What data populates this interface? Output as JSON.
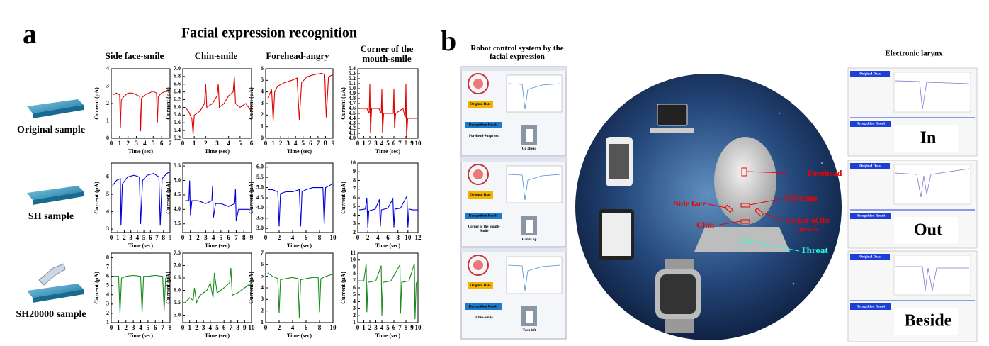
{
  "panel_a": {
    "label": "a",
    "title": "Facial expression recognition",
    "ylabel": "Current (μA)",
    "xlabel": "Time (sec)",
    "columns": [
      "Side face-smile",
      "Chin-smile",
      "Forehead-angry",
      "Corner of the mouth-smile"
    ],
    "rows": [
      {
        "sample": "Original sample",
        "color": "#e00000",
        "charts": [
          {
            "type": "line",
            "xlim": [
              0,
              7
            ],
            "ylim": [
              0,
              4
            ],
            "xticks": [
              0,
              1,
              2,
              3,
              4,
              5,
              6,
              7
            ],
            "yticks": [
              0,
              1,
              2,
              3,
              4
            ],
            "x": [
              0.2,
              0.6,
              1.0,
              1.1,
              1.2,
              1.5,
              2.0,
              2.5,
              3.0,
              3.4,
              3.5,
              3.6,
              4.0,
              4.5,
              5.0,
              5.4,
              5.5,
              5.6,
              6.0,
              6.5,
              6.8
            ],
            "values": [
              2.5,
              2.6,
              2.5,
              0.6,
              2.2,
              2.4,
              2.6,
              2.6,
              2.5,
              2.4,
              0.4,
              2.3,
              2.5,
              2.6,
              2.7,
              2.6,
              0.9,
              2.4,
              2.6,
              2.7,
              2.8
            ]
          },
          {
            "type": "line",
            "xlim": [
              0,
              6
            ],
            "ylim": [
              5.2,
              7.0
            ],
            "xticks": [
              0,
              1,
              2,
              3,
              4,
              5,
              6
            ],
            "yticks": [
              5.2,
              5.4,
              5.6,
              5.8,
              {
                "value": 6,
                "label": "6.0"
              },
              6.2,
              6.4,
              6.6,
              6.8,
              {
                "value": 7,
                "label": "7.0"
              }
            ],
            "x": [
              0.2,
              0.5,
              0.8,
              0.9,
              1.0,
              1.5,
              1.9,
              2.0,
              2.1,
              2.6,
              3.0,
              3.1,
              3.2,
              3.6,
              4.0,
              4.4,
              4.5,
              4.6,
              5.0,
              5.5,
              6.0
            ],
            "values": [
              6.0,
              5.9,
              5.7,
              5.3,
              5.8,
              5.9,
              6.1,
              6.6,
              6.0,
              6.1,
              6.3,
              6.6,
              6.0,
              6.1,
              6.3,
              6.4,
              6.8,
              6.1,
              6.0,
              6.1,
              5.9
            ]
          },
          {
            "type": "line",
            "xlim": [
              0,
              9
            ],
            "ylim": [
              0,
              6
            ],
            "xticks": [
              0,
              1,
              2,
              3,
              4,
              5,
              6,
              7,
              8,
              9
            ],
            "yticks": [
              0,
              1,
              2,
              3,
              4,
              5,
              6
            ],
            "x": [
              0.3,
              0.8,
              1.0,
              1.2,
              1.6,
              2.5,
              3.5,
              4.2,
              4.5,
              4.8,
              5.5,
              6.5,
              7.5,
              7.9,
              8.1,
              8.4,
              9.0
            ],
            "values": [
              3.5,
              4.2,
              1.5,
              4.0,
              4.5,
              4.8,
              5.0,
              5.2,
              1.6,
              4.8,
              5.3,
              5.5,
              5.6,
              5.5,
              1.8,
              5.3,
              5.5
            ]
          },
          {
            "type": "line",
            "xlim": [
              0,
              10
            ],
            "ylim": [
              4.0,
              5.4
            ],
            "xticks": [
              0,
              1,
              2,
              3,
              4,
              5,
              6,
              7,
              8,
              9,
              10
            ],
            "yticks": [
              {
                "value": 4,
                "label": "4.0"
              },
              4.1,
              4.2,
              4.3,
              4.4,
              4.5,
              4.6,
              4.7,
              4.8,
              4.9,
              {
                "value": 5,
                "label": "5.0"
              },
              5.1,
              5.2,
              5.3,
              5.4
            ],
            "x": [
              0.3,
              1.5,
              1.9,
              2.0,
              2.1,
              2.3,
              3.5,
              3.9,
              4.0,
              4.1,
              4.3,
              5.5,
              5.9,
              6.0,
              6.1,
              6.3,
              7.5,
              7.9,
              8.0,
              8.1,
              8.3,
              9.0,
              9.8
            ],
            "values": [
              4.6,
              4.6,
              4.5,
              5.1,
              4.1,
              4.6,
              4.6,
              4.5,
              5.0,
              4.1,
              4.5,
              4.5,
              4.5,
              5.0,
              4.2,
              4.5,
              4.6,
              4.4,
              5.1,
              4.0,
              4.4,
              4.4,
              4.4
            ]
          }
        ]
      },
      {
        "sample": "SH sample",
        "color": "#0000dd",
        "charts": [
          {
            "type": "line",
            "xlim": [
              0,
              9
            ],
            "ylim": [
              2.8,
              6.8
            ],
            "xticks": [
              0,
              1,
              2,
              3,
              4,
              5,
              6,
              7,
              8,
              9
            ],
            "yticks": [
              3,
              4,
              5,
              6
            ],
            "x": [
              0.2,
              0.8,
              1.4,
              1.5,
              1.7,
              2.5,
              3.5,
              4.3,
              4.5,
              4.8,
              5.5,
              6.5,
              7.3,
              7.5,
              7.8,
              8.5,
              9.0
            ],
            "values": [
              5.5,
              5.8,
              5.9,
              3.2,
              5.6,
              6.0,
              6.1,
              6.0,
              3.3,
              5.8,
              6.1,
              6.2,
              6.0,
              3.2,
              5.9,
              6.2,
              6.3
            ]
          },
          {
            "type": "line",
            "xlim": [
              0,
              9
            ],
            "ylim": [
              3.2,
              5.6
            ],
            "xticks": [
              0,
              1,
              2,
              3,
              4,
              5,
              6,
              7,
              8,
              9
            ],
            "yticks": [
              3.5,
              {
                "value": 4,
                "label": "4.0"
              },
              4.5,
              {
                "value": 5,
                "label": "5.0"
              },
              5.5
            ],
            "x": [
              0.3,
              0.8,
              0.9,
              1.0,
              1.2,
              2.0,
              3.0,
              3.8,
              3.9,
              4.0,
              4.3,
              5.0,
              6.0,
              6.8,
              6.9,
              7.0,
              7.3,
              8.0,
              8.8
            ],
            "values": [
              4.3,
              4.3,
              5.0,
              3.8,
              4.3,
              4.3,
              4.2,
              4.3,
              4.8,
              3.7,
              4.2,
              4.2,
              4.1,
              4.2,
              4.7,
              3.6,
              4.0,
              4.0,
              4.0
            ]
          },
          {
            "type": "line",
            "xlim": [
              0,
              10
            ],
            "ylim": [
              2.8,
              6.2
            ],
            "xticks": [
              0,
              2,
              4,
              6,
              8,
              10
            ],
            "yticks": [
              {
                "value": 3,
                "label": "3.0"
              },
              3.5,
              {
                "value": 4,
                "label": "4.0"
              },
              4.5,
              {
                "value": 5,
                "label": "5.0"
              },
              5.5,
              {
                "value": 6,
                "label": "6.0"
              }
            ],
            "x": [
              0.3,
              1.0,
              1.8,
              2.0,
              2.2,
              3.0,
              4.0,
              5.0,
              5.2,
              5.4,
              6.0,
              7.0,
              8.5,
              8.7,
              8.9,
              9.5,
              10.0
            ],
            "values": [
              4.9,
              4.9,
              4.8,
              3.1,
              4.7,
              4.8,
              4.8,
              4.9,
              3.1,
              4.8,
              4.9,
              5.0,
              5.0,
              3.2,
              5.0,
              5.1,
              5.2
            ]
          },
          {
            "type": "line",
            "xlim": [
              0,
              12
            ],
            "ylim": [
              2,
              10
            ],
            "xticks": [
              0,
              2,
              4,
              6,
              8,
              10,
              12
            ],
            "yticks": [
              2,
              3,
              4,
              5,
              6,
              7,
              8,
              9,
              10
            ],
            "x": [
              0.3,
              1.5,
              1.8,
              2.0,
              2.2,
              3.5,
              4.3,
              4.5,
              4.7,
              6.0,
              7.0,
              7.2,
              7.4,
              8.5,
              9.8,
              10.0,
              10.2,
              11.0,
              12.0
            ],
            "values": [
              4.6,
              4.7,
              6.0,
              2.5,
              4.5,
              4.7,
              5.8,
              2.7,
              4.6,
              4.8,
              5.9,
              2.6,
              4.7,
              4.8,
              6.2,
              2.6,
              4.7,
              4.6,
              4.6
            ]
          }
        ]
      },
      {
        "sample": "SH20000 sample",
        "color": "#1a8a1a",
        "charts": [
          {
            "type": "line",
            "xlim": [
              0,
              8
            ],
            "ylim": [
              1,
              8.5
            ],
            "xticks": [
              0,
              1,
              2,
              3,
              4,
              5,
              6,
              7,
              8
            ],
            "yticks": [
              1,
              2,
              3,
              4,
              5,
              6,
              7,
              8
            ],
            "x": [
              0.2,
              1.0,
              1.2,
              1.4,
              2.0,
              3.0,
              4.0,
              4.2,
              4.4,
              5.0,
              6.0,
              7.0,
              7.2,
              7.4,
              8.0
            ],
            "values": [
              6.0,
              6.0,
              2.0,
              5.8,
              6.0,
              6.1,
              6.0,
              2.1,
              6.0,
              6.0,
              6.1,
              6.0,
              2.3,
              5.8,
              5.9
            ]
          },
          {
            "type": "line",
            "xlim": [
              0,
              10
            ],
            "ylim": [
              4.7,
              7.5
            ],
            "xticks": [
              0,
              1,
              2,
              3,
              4,
              5,
              6,
              7,
              8,
              9,
              10
            ],
            "yticks": [
              {
                "value": 5,
                "label": "5.0"
              },
              5.5,
              {
                "value": 6,
                "label": "6.0"
              },
              6.5,
              {
                "value": 7,
                "label": "7.0"
              },
              7.5
            ],
            "x": [
              0.3,
              1.0,
              1.5,
              1.7,
              2.0,
              2.5,
              3.0,
              3.5,
              4.0,
              4.4,
              4.6,
              5.0,
              5.5,
              6.0,
              6.8,
              7.0,
              7.2,
              8.0,
              9.0,
              10.0
            ],
            "values": [
              5.5,
              5.7,
              5.6,
              6.1,
              5.5,
              5.8,
              5.9,
              6.0,
              6.3,
              5.7,
              6.7,
              5.9,
              6.0,
              6.1,
              6.3,
              6.9,
              5.8,
              5.9,
              6.1,
              6.3
            ]
          },
          {
            "type": "line",
            "xlim": [
              0,
              10
            ],
            "ylim": [
              1,
              7
            ],
            "xticks": [
              0,
              2,
              4,
              6,
              8,
              10
            ],
            "yticks": [
              1,
              2,
              3,
              4,
              5,
              6,
              7
            ],
            "x": [
              0.3,
              1.0,
              1.8,
              2.0,
              2.2,
              3.0,
              4.0,
              4.8,
              5.0,
              5.2,
              6.0,
              7.0,
              7.8,
              8.0,
              8.2,
              9.0,
              10.0
            ],
            "values": [
              5.3,
              5.0,
              4.8,
              1.8,
              4.7,
              4.8,
              4.9,
              4.8,
              1.4,
              4.7,
              4.8,
              4.9,
              4.9,
              1.9,
              4.8,
              5.0,
              5.2
            ]
          },
          {
            "type": "line",
            "xlim": [
              0,
              10
            ],
            "ylim": [
              1,
              11
            ],
            "xticks": [
              0,
              1,
              2,
              3,
              4,
              5,
              6,
              7,
              8,
              9,
              10
            ],
            "yticks": [
              1,
              2,
              3,
              4,
              5,
              6,
              7,
              8,
              9,
              10,
              11
            ],
            "x": [
              0.3,
              1.0,
              1.4,
              1.5,
              1.7,
              3.0,
              3.9,
              4.0,
              4.2,
              5.5,
              7.0,
              7.1,
              7.3,
              8.5,
              9.4,
              9.5,
              9.7,
              10.0
            ],
            "values": [
              7.0,
              7.0,
              9.5,
              2.5,
              6.8,
              7.0,
              9.2,
              2.0,
              6.8,
              7.0,
              9.3,
              2.3,
              6.8,
              7.0,
              9.5,
              1.5,
              6.7,
              6.9
            ]
          }
        ]
      }
    ]
  },
  "panel_b": {
    "label": "b",
    "robot_title": "Robot control system by the facial expression",
    "original": "Original Date",
    "recognition": "Recognition Result",
    "screens": [
      {
        "result": "Forehead-Surprised",
        "action": "Go ahead"
      },
      {
        "result": "Corner of the mouth-Smile",
        "action": "Hands up"
      },
      {
        "result": "Chin-Smile",
        "action": "Turn left"
      }
    ],
    "face_labels": {
      "forehead": "Forehead",
      "philtrum": "Philtrum",
      "side_face": "Side face",
      "corner": "Corner of the mouth",
      "chin": "Chin",
      "throat": "Throat"
    },
    "larynx": {
      "title": "Electronic larynx",
      "original": "Original Data",
      "recognition": "Recognition Result",
      "words": [
        "In",
        "Out",
        "Beside"
      ]
    }
  }
}
